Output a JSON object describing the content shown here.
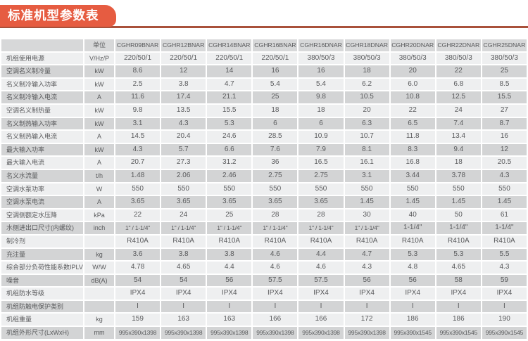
{
  "page_title": "标准机型参数表",
  "colors": {
    "banner_bg": "#e65c41",
    "banner_text": "#ffffff",
    "rule_line": "#a9513b",
    "row_dark": "#d3d4d5",
    "row_light": "#eeeff0",
    "header_bg": "#d7d8d9",
    "text": "#595a5c"
  },
  "table": {
    "unit_header": "单位",
    "models": [
      "CGHR09BNAR",
      "CGHR12BNAR",
      "CGHR14BNAR",
      "CGHR16BNAR",
      "CGHR16DNAR",
      "CGHR18DNAR",
      "CGHR20DNAR",
      "CGHR22DNAR",
      "CGHR25DNAR"
    ],
    "rows": [
      {
        "label": "机组使用电源",
        "unit": "V/Hz/P",
        "values": [
          "220/50/1",
          "220/50/1",
          "220/50/1",
          "220/50/1",
          "380/50/3",
          "380/50/3",
          "380/50/3",
          "380/50/3",
          "380/50/3"
        ]
      },
      {
        "label": "空调名义制冷量",
        "unit": "kW",
        "values": [
          "8.6",
          "12",
          "14",
          "16",
          "16",
          "18",
          "20",
          "22",
          "25"
        ]
      },
      {
        "label": "名义制冷输入功率",
        "unit": "kW",
        "values": [
          "2.5",
          "3.8",
          "4.7",
          "5.4",
          "5.4",
          "6.2",
          "6.0",
          "6.8",
          "8.5"
        ]
      },
      {
        "label": "名义制冷输入电流",
        "unit": "A",
        "values": [
          "11.6",
          "17.4",
          "21.1",
          "25",
          "9.8",
          "10.5",
          "10.8",
          "12.5",
          "15.5"
        ]
      },
      {
        "label": "空调名义制热量",
        "unit": "kW",
        "values": [
          "9.8",
          "13.5",
          "15.5",
          "18",
          "18",
          "20",
          "22",
          "24",
          "27"
        ]
      },
      {
        "label": "名义制热输入功率",
        "unit": "kW",
        "values": [
          "3.1",
          "4.3",
          "5.3",
          "6",
          "6",
          "6.3",
          "6.5",
          "7.4",
          "8.7"
        ]
      },
      {
        "label": "名义制热输入电流",
        "unit": "A",
        "values": [
          "14.5",
          "20.4",
          "24.6",
          "28.5",
          "10.9",
          "10.7",
          "11.8",
          "13.4",
          "16"
        ]
      },
      {
        "label": "最大输入功率",
        "unit": "kW",
        "values": [
          "4.3",
          "5.7",
          "6.6",
          "7.6",
          "7.9",
          "8.1",
          "8.3",
          "9.4",
          "12"
        ]
      },
      {
        "label": "最大输入电流",
        "unit": "A",
        "values": [
          "20.7",
          "27.3",
          "31.2",
          "36",
          "16.5",
          "16.1",
          "16.8",
          "18",
          "20.5"
        ]
      },
      {
        "label": "名义水流量",
        "unit": "t/h",
        "values": [
          "1.48",
          "2.06",
          "2.46",
          "2.75",
          "2.75",
          "3.1",
          "3.44",
          "3.78",
          "4.3"
        ]
      },
      {
        "label": "空调水泵功率",
        "unit": "W",
        "values": [
          "550",
          "550",
          "550",
          "550",
          "550",
          "550",
          "550",
          "550",
          "550"
        ]
      },
      {
        "label": "空调水泵电流",
        "unit": "A",
        "values": [
          "3.65",
          "3.65",
          "3.65",
          "3.65",
          "3.65",
          "1.45",
          "1.45",
          "1.45",
          "1.45"
        ]
      },
      {
        "label": "空调侧额定水压降",
        "unit": "kPa",
        "values": [
          "22",
          "24",
          "25",
          "28",
          "28",
          "30",
          "40",
          "50",
          "61"
        ]
      },
      {
        "label": "水侧进出口尺寸(内螺纹)",
        "unit": "inch",
        "values": [
          "1\" / 1-1/4\"",
          "1\" / 1-1/4\"",
          "1\" / 1-1/4\"",
          "1\" / 1-1/4\"",
          "1\" / 1-1/4\"",
          "1\" / 1-1/4\"",
          "1-1/4\"",
          "1-1/4\"",
          "1-1/4\""
        ]
      },
      {
        "label": "制冷剂",
        "unit": "",
        "values": [
          "R410A",
          "R410A",
          "R410A",
          "R410A",
          "R410A",
          "R410A",
          "R410A",
          "R410A",
          "R410A"
        ]
      },
      {
        "label": "充注量",
        "unit": "kg",
        "values": [
          "3.6",
          "3.8",
          "3.8",
          "4.6",
          "4.4",
          "4.7",
          "5.3",
          "5.3",
          "5.5"
        ]
      },
      {
        "label": "综合部分负荷性能系数IPLV",
        "unit": "W/W",
        "values": [
          "4.78",
          "4.65",
          "4.4",
          "4.6",
          "4.6",
          "4.3",
          "4.8",
          "4.65",
          "4.3"
        ]
      },
      {
        "label": "噪音",
        "unit": "dB(A)",
        "values": [
          "54",
          "54",
          "56",
          "57.5",
          "57.5",
          "56",
          "56",
          "58",
          "59"
        ]
      },
      {
        "label": "机组防水等级",
        "unit": "",
        "values": [
          "IPX4",
          "IPX4",
          "IPX4",
          "IPX4",
          "IPX4",
          "IPX4",
          "IPX4",
          "IPX4",
          "IPX4"
        ]
      },
      {
        "label": "机组防触电保护类别",
        "unit": "",
        "values": [
          "I",
          "I",
          "I",
          "I",
          "I",
          "I",
          "I",
          "I",
          "I"
        ]
      },
      {
        "label": "机组重量",
        "unit": "kg",
        "values": [
          "159",
          "163",
          "163",
          "166",
          "166",
          "172",
          "186",
          "186",
          "190"
        ]
      },
      {
        "label": "机组外形尺寸(LxWxH)",
        "unit": "mm",
        "values": [
          "995x390x1398",
          "995x390x1398",
          "995x390x1398",
          "995x390x1398",
          "995x390x1398",
          "995x390x1398",
          "995x390x1545",
          "995x390x1545",
          "995x390x1545"
        ]
      }
    ]
  }
}
